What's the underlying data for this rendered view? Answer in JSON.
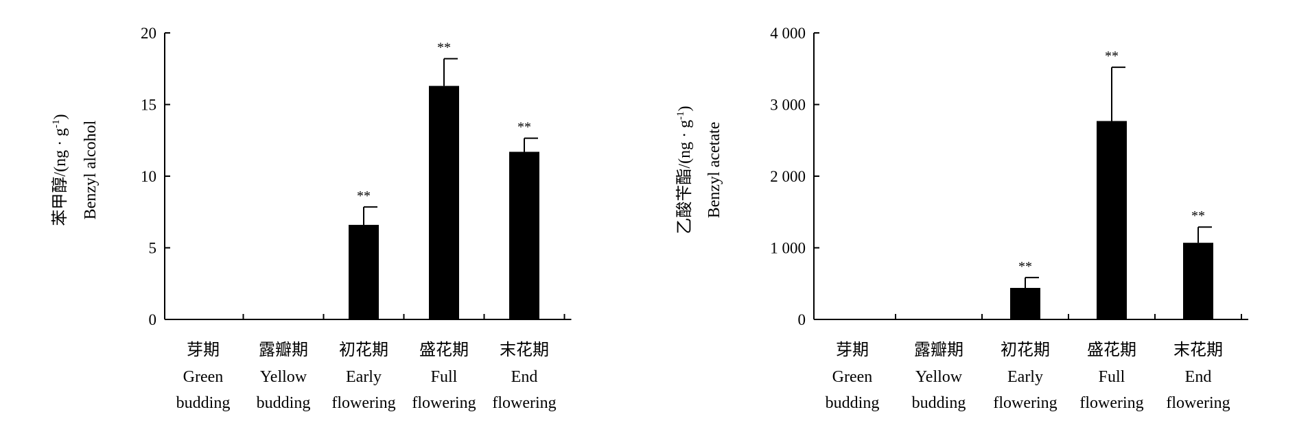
{
  "chart_data": [
    {
      "type": "bar",
      "ylabel_cn": "苯甲醇/(ng · g",
      "ylabel_unit_sup": "-1",
      "ylabel_close": ")",
      "ylabel_en": "Benzyl alcohol",
      "ylim": [
        0,
        20
      ],
      "yticks": [
        0,
        5,
        10,
        15,
        20
      ],
      "ytick_labels": [
        "0",
        "5",
        "10",
        "15",
        "20"
      ],
      "categories": [
        {
          "cn": "芽期",
          "en": [
            "Green",
            "budding"
          ]
        },
        {
          "cn": "露瓣期",
          "en": [
            "Yellow",
            "budding"
          ]
        },
        {
          "cn": "初花期",
          "en": [
            "Early",
            "flowering"
          ]
        },
        {
          "cn": "盛花期",
          "en": [
            "Full",
            "flowering"
          ]
        },
        {
          "cn": "末花期",
          "en": [
            "End",
            "flowering"
          ]
        }
      ],
      "values": [
        0,
        0,
        6.6,
        16.3,
        11.7
      ],
      "errors": [
        0,
        0,
        1.25,
        1.9,
        0.95
      ],
      "significance": [
        "",
        "",
        "**",
        "**",
        "**"
      ],
      "bar_color": "#000000",
      "grid": false
    },
    {
      "type": "bar",
      "ylabel_cn": "乙酸苄酯/(ng · g",
      "ylabel_unit_sup": "-1",
      "ylabel_close": ")",
      "ylabel_en": "Benzyl acetate",
      "ylim": [
        0,
        4000
      ],
      "yticks": [
        0,
        1000,
        2000,
        3000,
        4000
      ],
      "ytick_labels": [
        "0",
        "1 000",
        "2 000",
        "3 000",
        "4 000"
      ],
      "categories": [
        {
          "cn": "芽期",
          "en": [
            "Green",
            "budding"
          ]
        },
        {
          "cn": "露瓣期",
          "en": [
            "Yellow",
            "budding"
          ]
        },
        {
          "cn": "初花期",
          "en": [
            "Early",
            "flowering"
          ]
        },
        {
          "cn": "盛花期",
          "en": [
            "Full",
            "flowering"
          ]
        },
        {
          "cn": "末花期",
          "en": [
            "End",
            "flowering"
          ]
        }
      ],
      "values": [
        0,
        0,
        440,
        2770,
        1070
      ],
      "errors": [
        0,
        0,
        145,
        750,
        220
      ],
      "significance": [
        "",
        "",
        "**",
        "**",
        "**"
      ],
      "bar_color": "#000000",
      "grid": false
    }
  ]
}
